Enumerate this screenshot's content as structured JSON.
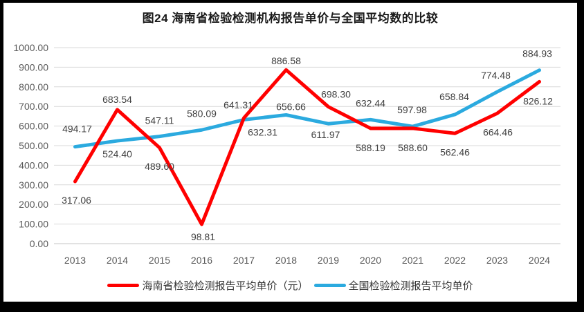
{
  "chart_data": {
    "type": "line",
    "title": "图24  海南省检验检测机构报告单价与全国平均数的比较",
    "categories": [
      "2013",
      "2014",
      "2015",
      "2016",
      "2017",
      "2018",
      "2019",
      "2020",
      "2021",
      "2022",
      "2023",
      "2024"
    ],
    "series": [
      {
        "name": "海南省检验检测报告平均单价（元）",
        "color": "#FF0000",
        "values": [
          317.06,
          683.54,
          489.6,
          98.81,
          641.31,
          886.58,
          698.3,
          588.19,
          588.6,
          562.46,
          664.46,
          826.12
        ],
        "label_dx": [
          2,
          0,
          0,
          2,
          -8,
          0,
          11,
          0,
          0,
          0,
          1,
          -2
        ],
        "label_dy": [
          32,
          -10,
          32,
          23,
          -14,
          -8,
          -13,
          33,
          33,
          32,
          32,
          33
        ]
      },
      {
        "name": "全国检验检测报告平均单价",
        "color": "#2BAADF",
        "values": [
          494.17,
          524.4,
          547.11,
          580.09,
          632.31,
          656.66,
          611.97,
          632.44,
          597.98,
          658.84,
          774.48,
          884.93
        ],
        "label_dx": [
          3,
          0,
          0,
          0,
          27,
          7,
          -4,
          0,
          -1,
          -1,
          -2,
          -3
        ],
        "label_dy": [
          -21,
          24,
          -18,
          -19,
          23,
          -7,
          21,
          -19,
          -19,
          -21,
          -19,
          -19
        ]
      }
    ],
    "xlabel": "",
    "ylabel": "",
    "ylim": [
      0,
      1000
    ],
    "ytick_step": 100,
    "ytick_format": "2-decimals",
    "value_label_decimals": 2,
    "grid": "horizontal",
    "legend_position": "bottom"
  },
  "styles": {
    "frame_color": "#000000",
    "background": "#FFFFFF",
    "grid_color": "#D9D9D9",
    "axis_line_color": "#C6C6C6",
    "tick_label_color": "#595959",
    "data_label_color": "#404040",
    "title_color": "#1a1a1a",
    "legend_text_color": "#333333"
  }
}
